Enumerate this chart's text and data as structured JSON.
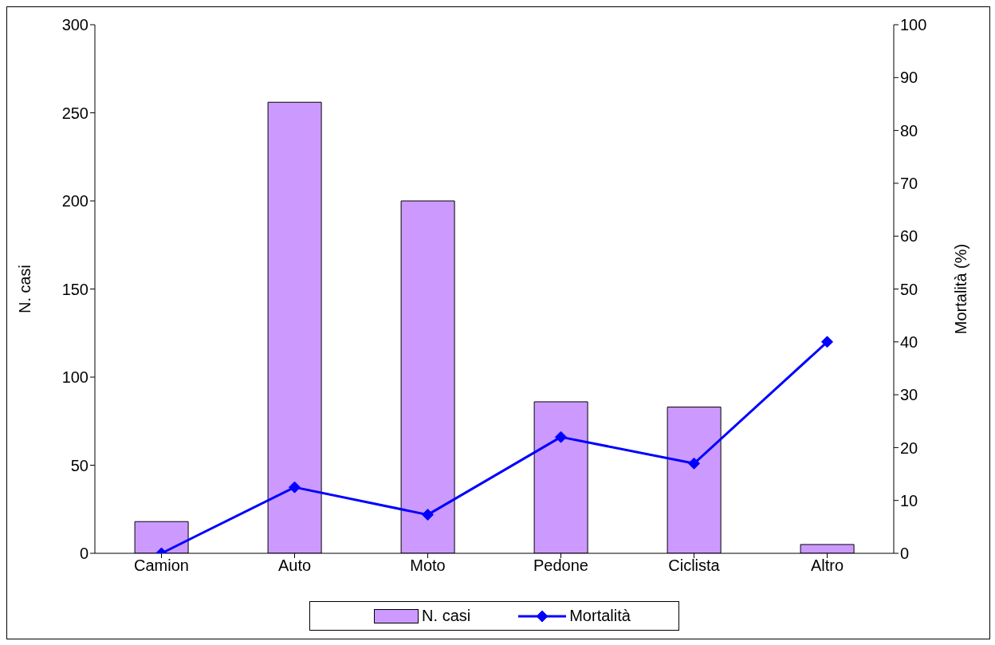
{
  "chart_data": {
    "type": "bar",
    "categories": [
      "Camion",
      "Auto",
      "Moto",
      "Pedone",
      "Ciclista",
      "Altro"
    ],
    "series": [
      {
        "name": "N. casi",
        "color": "#cc99ff",
        "values": [
          18,
          256,
          200,
          86,
          83,
          5
        ]
      },
      {
        "name": "Mortalità",
        "type": "line",
        "axis": "y2",
        "color": "#0000ff",
        "values": [
          0,
          12.5,
          7.3,
          22,
          17,
          40
        ],
        "marker": "diamond",
        "line_style": "solid"
      }
    ],
    "ylabel": "N. casi",
    "y2label": "Mortalità (%)",
    "ylim": [
      0,
      300
    ],
    "yticks": [
      0,
      50,
      100,
      150,
      200,
      250,
      300
    ],
    "y2lim": [
      0,
      100
    ],
    "y2ticks": [
      0,
      10,
      20,
      30,
      40,
      50,
      60,
      70,
      80,
      90,
      100
    ],
    "legend": "bottom"
  }
}
